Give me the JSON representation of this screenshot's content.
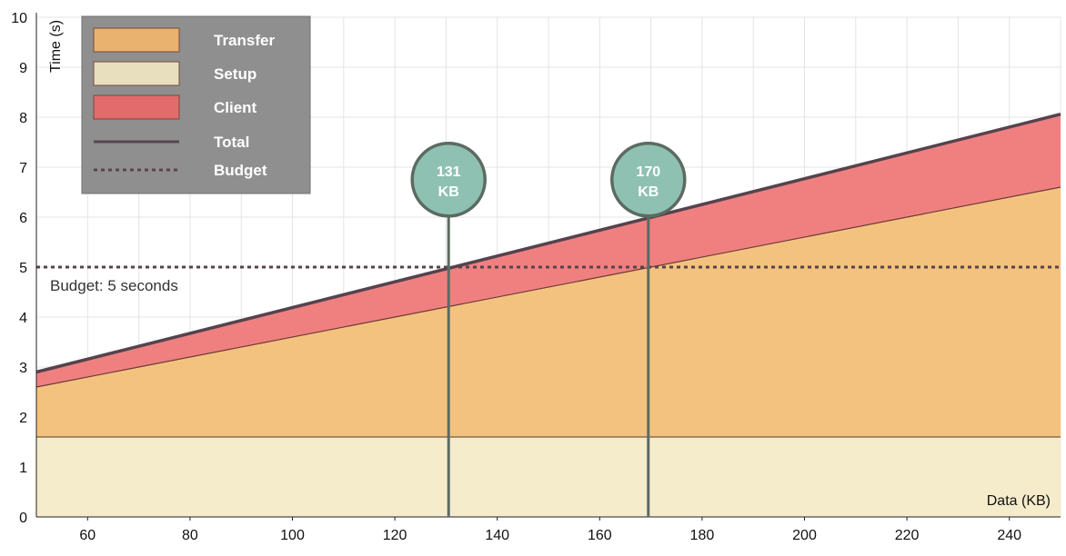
{
  "chart_data": {
    "type": "area",
    "xlabel": "Data (KB)",
    "ylabel": "Time (s)",
    "xlim": [
      50,
      250
    ],
    "ylim": [
      0,
      10
    ],
    "x_ticks": [
      60,
      80,
      100,
      120,
      140,
      160,
      180,
      200,
      220,
      240
    ],
    "y_ticks": [
      0,
      1,
      2,
      3,
      4,
      5,
      6,
      7,
      8,
      9,
      10
    ],
    "grid": true,
    "legend_placement": "top-left",
    "legend": [
      {
        "name": "Transfer",
        "kind": "swatch",
        "color": "#e9b26f"
      },
      {
        "name": "Setup",
        "kind": "swatch",
        "color": "#e7dfbe"
      },
      {
        "name": "Client",
        "kind": "swatch",
        "color": "#e36b6b"
      },
      {
        "name": "Total",
        "kind": "line",
        "color": "#5a4450"
      },
      {
        "name": "Budget",
        "kind": "dotted",
        "color": "#5a4450"
      }
    ],
    "x": [
      50,
      250
    ],
    "series": [
      {
        "name": "Setup",
        "values": [
          1.6,
          1.6
        ],
        "color": "#f5eccb"
      },
      {
        "name": "Transfer",
        "values": [
          1.0,
          5.0
        ],
        "color": "#f3c27e"
      },
      {
        "name": "Client",
        "values": [
          0.3,
          1.46
        ],
        "color": "#f08080"
      },
      {
        "name": "Total",
        "values": [
          2.9,
          8.06
        ],
        "color": "#55434d"
      }
    ],
    "budget": {
      "value": 5,
      "label": "Budget: 5 seconds",
      "color": "#55434d"
    },
    "markers": [
      {
        "x": 130.5,
        "line1": "131",
        "line2": "KB",
        "y": 6.75
      },
      {
        "x": 169.5,
        "line1": "170",
        "line2": "KB",
        "y": 6.75
      }
    ],
    "marker_fill": "#8fc1b2",
    "marker_stroke": "#5b6b62"
  }
}
